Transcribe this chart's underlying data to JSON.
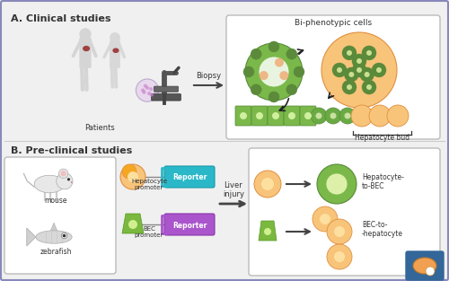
{
  "bg_color": "#f0f0f0",
  "border_color": "#8888bb",
  "section_a_label": "A. Clinical studies",
  "section_b_label": "B. Pre-clinical studies",
  "biopsy_label": "Biopsy",
  "patients_label": "Patients",
  "bi_phenotypic_label": "Bi-phenotypic cells",
  "hepatocyte_bud_label": "Hepatocyte bud",
  "mouse_label": "mouse",
  "zebrafish_label": "zebrafish",
  "hepatocyte_promoter_label": "Hepatocyte\npromoter",
  "bec_promoter_label": "BEC\npromoter",
  "reporter_label": "Reporter",
  "liver_injury_label": "Liver\ninjury",
  "hep_to_bec_label": "Hepatocyte-\nto-BEC",
  "bec_to_hep_label": "BEC-to-\n-hepatocyte",
  "color_orange": "#f5a623",
  "color_orange_light": "#f8c47a",
  "color_orange_inner": "#fde0a0",
  "color_green_dark": "#5a8a3a",
  "color_green_mid": "#7ab84a",
  "color_green_light": "#c8e0a0",
  "color_green_cell": "#6aaa44",
  "color_teal_reporter": "#2ab8c8",
  "color_purple_reporter": "#aa55cc",
  "color_dark": "#333333",
  "color_arrow": "#444444",
  "color_box_bg": "#ffffff",
  "color_liver": "#a04040",
  "color_divider": "#cccccc",
  "color_logo_bg": "#336699"
}
